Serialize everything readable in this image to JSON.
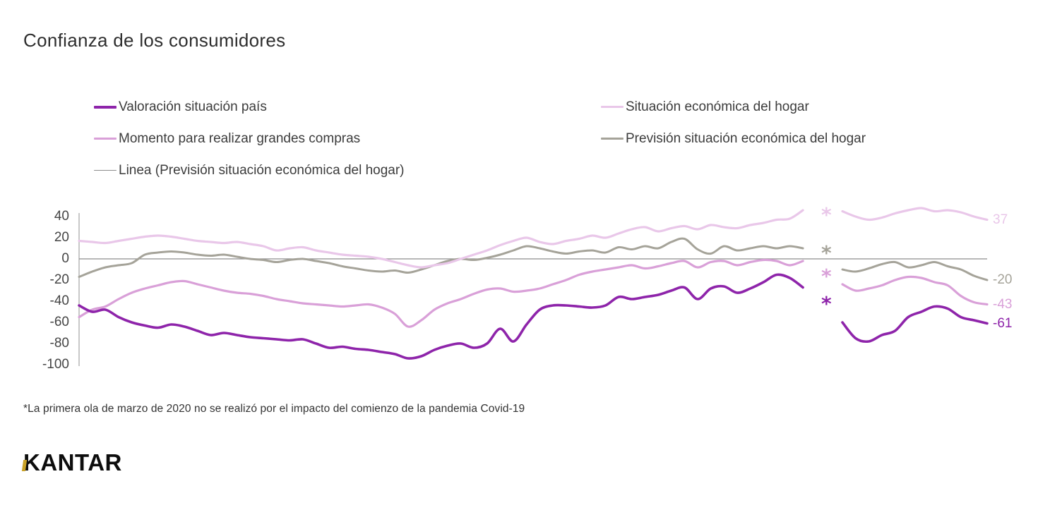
{
  "title": "Confianza de los consumidores",
  "footnote": "*La primera ola de marzo de 2020 no se realizó por el impacto del comienzo de la pandemia Covid-19",
  "logo": {
    "text": "KANTAR",
    "accent_color": "#c9a227"
  },
  "legend": {
    "left": [
      {
        "label": "Valoración situación país",
        "color": "#8e24aa",
        "line_weight": 4
      },
      {
        "label": "Momento para realizar grandes compras",
        "color": "#d9a0d8",
        "line_weight": 3.5
      },
      {
        "label": "Linea (Previsión situación económica del hogar)",
        "color": "#8c8c8c",
        "line_weight": 1.5
      }
    ],
    "right": [
      {
        "label": "Situación económica del hogar",
        "color": "#e9c7e9",
        "line_weight": 3.5
      },
      {
        "label": "Previsión situación económica del hogar",
        "color": "#a5a399",
        "line_weight": 3.5
      }
    ]
  },
  "chart_data": {
    "type": "line",
    "title": "Confianza de los consumidores",
    "xlabel": "",
    "ylabel": "",
    "x_tick_labels_visible": false,
    "y_ticks": [
      40,
      20,
      0,
      -20,
      -40,
      -60,
      -80,
      -100
    ],
    "ylim": [
      -105,
      55
    ],
    "grid": false,
    "legend_position": "top",
    "gap_marker_symbol": "*",
    "gap_note": "Una ola omitida (marzo 2020) marcada con asterisco por serie",
    "series": [
      {
        "key": "linea-cero",
        "name": "Linea (Previsión situación económica del hogar)",
        "color": "#8c8c8c",
        "stroke_width": 1.2,
        "constant": 0,
        "end_label": null,
        "gap_marker_value": null
      },
      {
        "key": "prevision-hogar",
        "name": "Previsión situación económica del hogar",
        "color": "#a5a399",
        "stroke_width": 3,
        "end_label": "-20",
        "gap_marker_value": 10,
        "values": [
          -17,
          -12,
          -8,
          -6,
          -4,
          4,
          6,
          7,
          6,
          4,
          3,
          4,
          2,
          0,
          -1,
          -3,
          -1,
          0,
          -2,
          -4,
          -7,
          -9,
          -11,
          -12,
          -11,
          -13,
          -10,
          -6,
          -2,
          0,
          -1,
          1,
          4,
          8,
          12,
          10,
          7,
          5,
          7,
          8,
          6,
          11,
          9,
          12,
          10,
          16,
          19,
          9,
          5,
          12,
          8,
          10,
          12,
          10,
          12,
          10,
          null,
          null,
          -10,
          -12,
          -9,
          -5,
          -3,
          -8,
          -6,
          -3,
          -7,
          -10,
          -16,
          -20
        ]
      },
      {
        "key": "situacion-hogar",
        "name": "Situación económica del hogar",
        "color": "#e9c7e9",
        "stroke_width": 3.2,
        "end_label": "37",
        "gap_marker_value": 46,
        "values": [
          17,
          16,
          15,
          17,
          19,
          21,
          22,
          21,
          19,
          17,
          16,
          15,
          16,
          14,
          12,
          8,
          10,
          11,
          8,
          6,
          4,
          3,
          2,
          0,
          -3,
          -6,
          -8,
          -6,
          -4,
          0,
          4,
          8,
          13,
          17,
          20,
          16,
          14,
          17,
          19,
          22,
          20,
          24,
          28,
          30,
          26,
          29,
          31,
          28,
          32,
          30,
          29,
          32,
          34,
          37,
          38,
          46,
          null,
          null,
          45,
          40,
          37,
          39,
          43,
          46,
          48,
          45,
          46,
          44,
          40,
          37
        ]
      },
      {
        "key": "grandes-compras",
        "name": "Momento para realizar grandes compras",
        "color": "#d9a0d8",
        "stroke_width": 3.2,
        "end_label": "-43",
        "gap_marker_value": -12,
        "values": [
          -55,
          -48,
          -45,
          -38,
          -32,
          -28,
          -25,
          -22,
          -21,
          -24,
          -27,
          -30,
          -32,
          -33,
          -35,
          -38,
          -40,
          -42,
          -43,
          -44,
          -45,
          -44,
          -43,
          -46,
          -52,
          -64,
          -58,
          -48,
          -42,
          -38,
          -33,
          -29,
          -28,
          -31,
          -30,
          -28,
          -24,
          -20,
          -15,
          -12,
          -10,
          -8,
          -6,
          -9,
          -7,
          -4,
          -2,
          -8,
          -3,
          -2,
          -6,
          -3,
          -1,
          -2,
          -6,
          -2,
          null,
          null,
          -24,
          -30,
          -28,
          -25,
          -20,
          -17,
          -18,
          -22,
          -25,
          -35,
          -41,
          -43
        ]
      },
      {
        "key": "valoracion-pais",
        "name": "Valoración situación país",
        "color": "#8e24aa",
        "stroke_width": 3.6,
        "end_label": "-61",
        "gap_marker_value": -38,
        "values": [
          -44,
          -50,
          -48,
          -55,
          -60,
          -63,
          -65,
          -62,
          -64,
          -68,
          -72,
          -70,
          -72,
          -74,
          -75,
          -76,
          -77,
          -76,
          -80,
          -84,
          -83,
          -85,
          -86,
          -88,
          -90,
          -94,
          -92,
          -86,
          -82,
          -80,
          -84,
          -80,
          -66,
          -78,
          -62,
          -48,
          -44,
          -44,
          -45,
          -46,
          -44,
          -36,
          -38,
          -36,
          -34,
          -30,
          -27,
          -38,
          -28,
          -26,
          -32,
          -28,
          -22,
          -15,
          -18,
          -27,
          null,
          null,
          -60,
          -75,
          -78,
          -72,
          -68,
          -55,
          -50,
          -45,
          -47,
          -55,
          -58,
          -61
        ]
      }
    ]
  }
}
